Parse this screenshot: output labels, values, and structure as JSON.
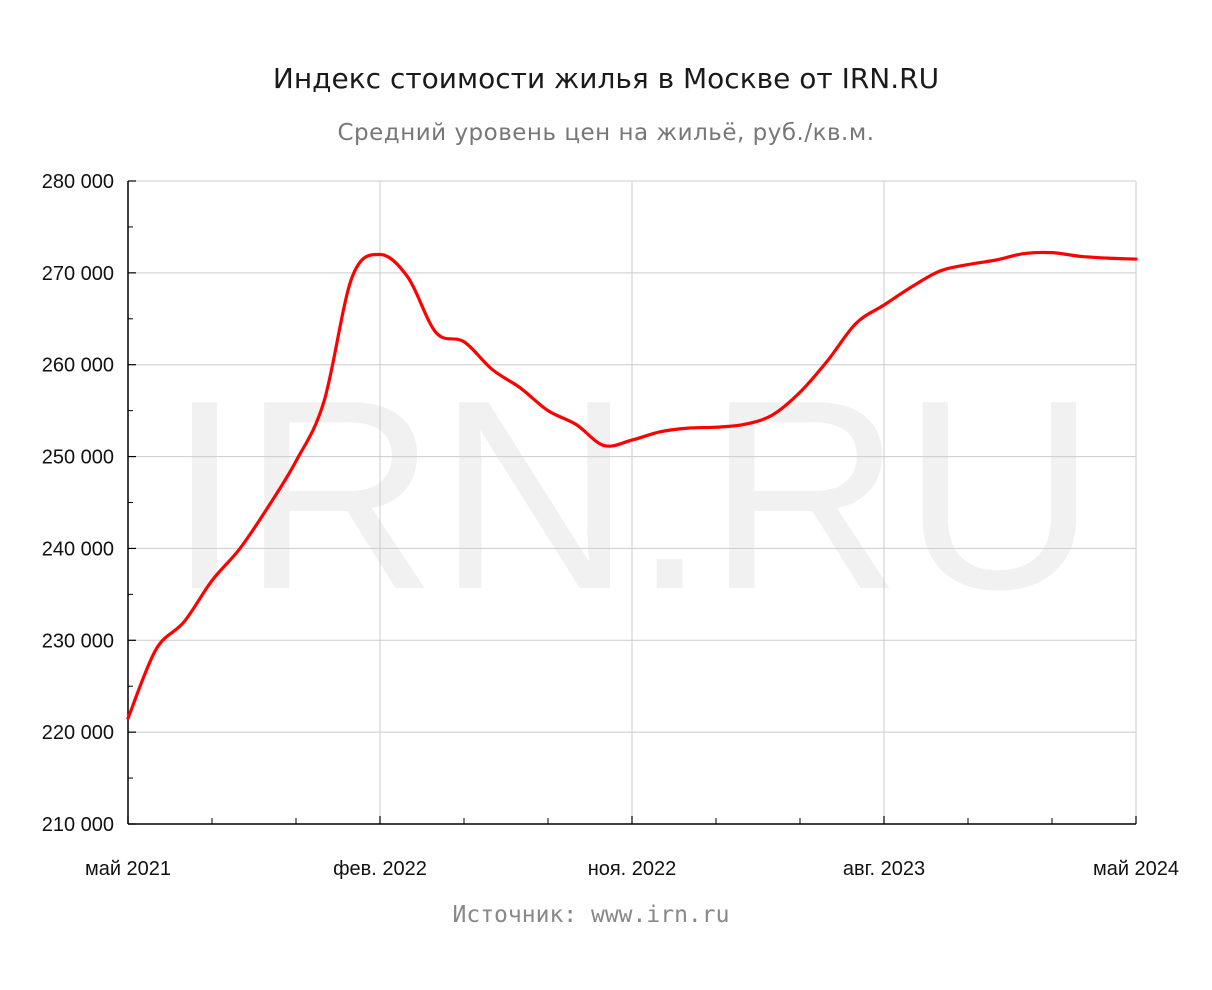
{
  "chart_data": {
    "type": "line",
    "title": "Индекс стоимости жилья в Москве от IRN.RU",
    "subtitle": "Средний уровень цен на жильё, руб./кв.м.",
    "source": "Источник: www.irn.ru",
    "watermark": "IRN.RU",
    "xlabel": "",
    "ylabel": "",
    "ylim": [
      210000,
      280000
    ],
    "y_ticks": [
      {
        "value": 280000,
        "label": "280 000"
      },
      {
        "value": 270000,
        "label": "270 000"
      },
      {
        "value": 260000,
        "label": "260 000"
      },
      {
        "value": 250000,
        "label": "250 000"
      },
      {
        "value": 240000,
        "label": "240 000"
      },
      {
        "value": 230000,
        "label": "230 000"
      },
      {
        "value": 220000,
        "label": "220 000"
      },
      {
        "value": 210000,
        "label": "210 000"
      }
    ],
    "x_tick_labels": [
      "май 2021",
      "фев. 2022",
      "ноя. 2022",
      "авг. 2023",
      "май 2024"
    ],
    "grid": true,
    "line_color": "#ff0000",
    "series": [
      {
        "name": "",
        "x": [
          "2021-05",
          "2021-06",
          "2021-07",
          "2021-08",
          "2021-09",
          "2021-10",
          "2021-11",
          "2021-12",
          "2022-01",
          "2022-02",
          "2022-03",
          "2022-04",
          "2022-05",
          "2022-06",
          "2022-07",
          "2022-08",
          "2022-09",
          "2022-10",
          "2022-11",
          "2022-12",
          "2023-01",
          "2023-02",
          "2023-03",
          "2023-04",
          "2023-05",
          "2023-06",
          "2023-07",
          "2023-08",
          "2023-09",
          "2023-10",
          "2023-11",
          "2023-12",
          "2024-01",
          "2024-02",
          "2024-03",
          "2024-04",
          "2024-05"
        ],
        "values": [
          221500,
          229000,
          232000,
          236500,
          240000,
          244500,
          249500,
          256000,
          269500,
          272000,
          269500,
          263500,
          262500,
          259500,
          257500,
          255000,
          253500,
          251200,
          251800,
          252700,
          253100,
          253200,
          253500,
          254500,
          257000,
          260500,
          264500,
          266500,
          268500,
          270200,
          270900,
          271400,
          272100,
          272200,
          271800,
          271600,
          271500
        ]
      }
    ]
  }
}
